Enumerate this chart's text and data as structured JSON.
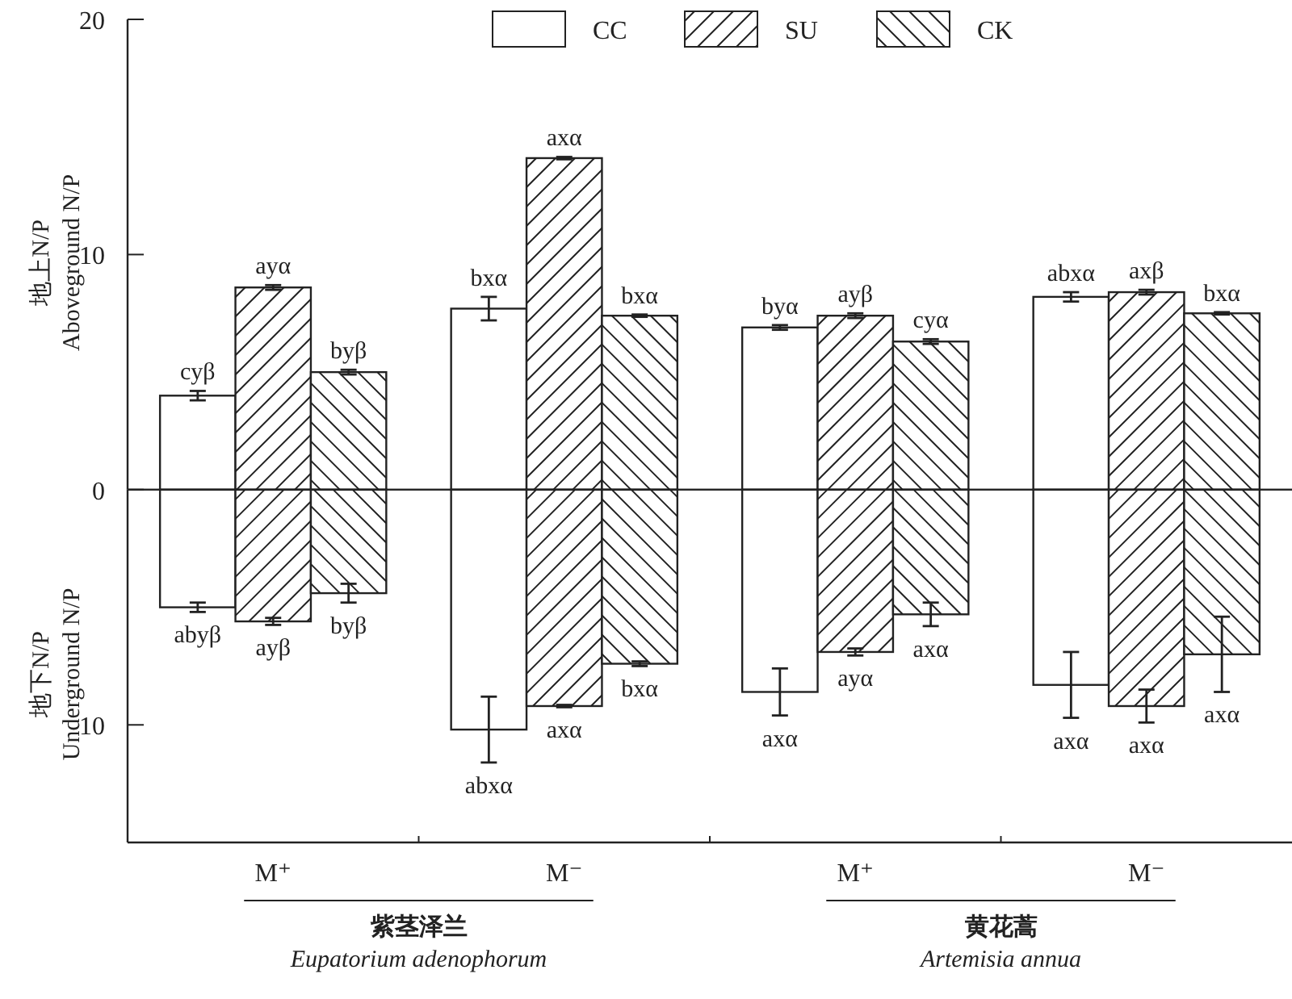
{
  "chart_data": [
    {
      "type": "bar",
      "categories": [
        null,
        null,
        null,
        null
      ],
      "ylabel": "地上N/P\nAboveground N/P",
      "ylim": [
        0,
        20
      ],
      "yticks": [
        {
          "value": 0,
          "label": null
        },
        10,
        20
      ],
      "tick_labels": "y",
      "legend": "top",
      "series": [
        {
          "name": "CC",
          "color": "#ffffff",
          "values": [
            4.0,
            7.7,
            6.9,
            8.2
          ],
          "errors": [
            0.2,
            0.5,
            0.1,
            0.2
          ],
          "value_labels": [
            "cyβ",
            "bxα",
            "byα",
            "abxα"
          ]
        },
        {
          "name": "SU",
          "color": "#ffffff",
          "values": [
            8.6,
            14.1,
            7.4,
            8.4
          ],
          "errors": [
            0.1,
            0.05,
            0.1,
            0.1
          ],
          "value_labels": [
            "ayα",
            "axα",
            "ayβ",
            "axβ"
          ]
        },
        {
          "name": "CK",
          "color": "#ffffff",
          "values": [
            5.0,
            7.4,
            6.3,
            7.5
          ],
          "errors": [
            0.1,
            0.05,
            0.1,
            0.05
          ],
          "value_labels": [
            "byβ",
            "bxα",
            "cyα",
            "bxα"
          ]
        }
      ]
    },
    {
      "type": "bar",
      "categories": [
        "M⁺",
        "M⁻",
        "M⁺",
        "M⁻"
      ],
      "ylabel": "地下N/P\nUnderground N/P",
      "annotations": [
        "紫茎泽兰\nEupatorium adenophorum",
        "黄花蒿\nArtemisia annua"
      ],
      "ylim": [
        15,
        0
      ],
      "yticks": [
        0,
        10
      ],
      "series": [
        {
          "color": "#ffffff",
          "values": [
            5.0,
            10.2,
            8.6,
            8.3
          ],
          "errors": [
            0.2,
            1.4,
            1.0,
            1.4
          ],
          "value_labels": [
            "abyβ",
            "abxα",
            "axα",
            "axα"
          ]
        },
        {
          "color": "#ffffff",
          "values": [
            5.6,
            9.2,
            6.9,
            9.2
          ],
          "errors": [
            0.15,
            0.05,
            0.15,
            0.7
          ],
          "value_labels": [
            "ayβ",
            "axα",
            "ayα",
            "axα"
          ]
        },
        {
          "color": "#ffffff",
          "values": [
            4.4,
            7.4,
            5.3,
            7.0
          ],
          "errors": [
            0.4,
            0.1,
            0.5,
            1.6
          ],
          "value_labels": [
            "byβ",
            "bxα",
            "axα",
            "axα"
          ]
        }
      ]
    }
  ]
}
